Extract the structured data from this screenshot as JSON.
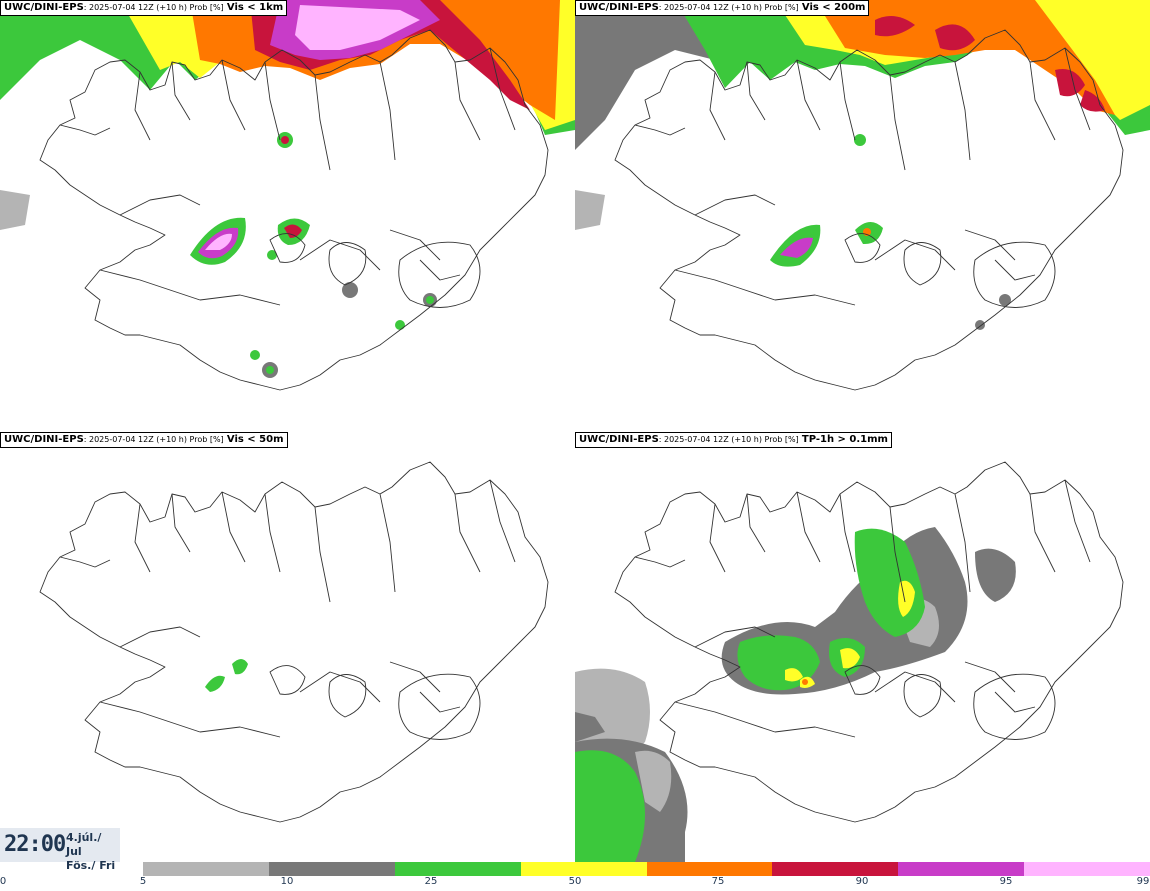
{
  "panels": [
    {
      "source": "UWC/DINI-EPS",
      "meta": ": 2025-07-04 12Z (+10 h) Prob [%]",
      "variable": "Vis < 1km"
    },
    {
      "source": "UWC/DINI-EPS",
      "meta": ": 2025-07-04 12Z (+10 h) Prob [%]",
      "variable": "Vis < 200m"
    },
    {
      "source": "UWC/DINI-EPS",
      "meta": ": 2025-07-04 12Z (+10 h) Prob [%]",
      "variable": "Vis < 50m"
    },
    {
      "source": "UWC/DINI-EPS",
      "meta": ": 2025-07-04 12Z (+10 h) Prob [%]",
      "variable": "TP-1h > 0.1mm"
    }
  ],
  "clock": {
    "time": "22:00",
    "date_line1": "4.júl./ Jul",
    "date_line2": "Fös./ Fri"
  },
  "legend": {
    "labels": [
      "0",
      "5",
      "10",
      "25",
      "50",
      "75",
      "90",
      "95",
      "99"
    ],
    "colors": [
      "#b4b4b4",
      "#787878",
      "#3cc83c",
      "#ffff28",
      "#ff7800",
      "#c8143c",
      "#c83cc8",
      "#ffb4ff"
    ]
  }
}
